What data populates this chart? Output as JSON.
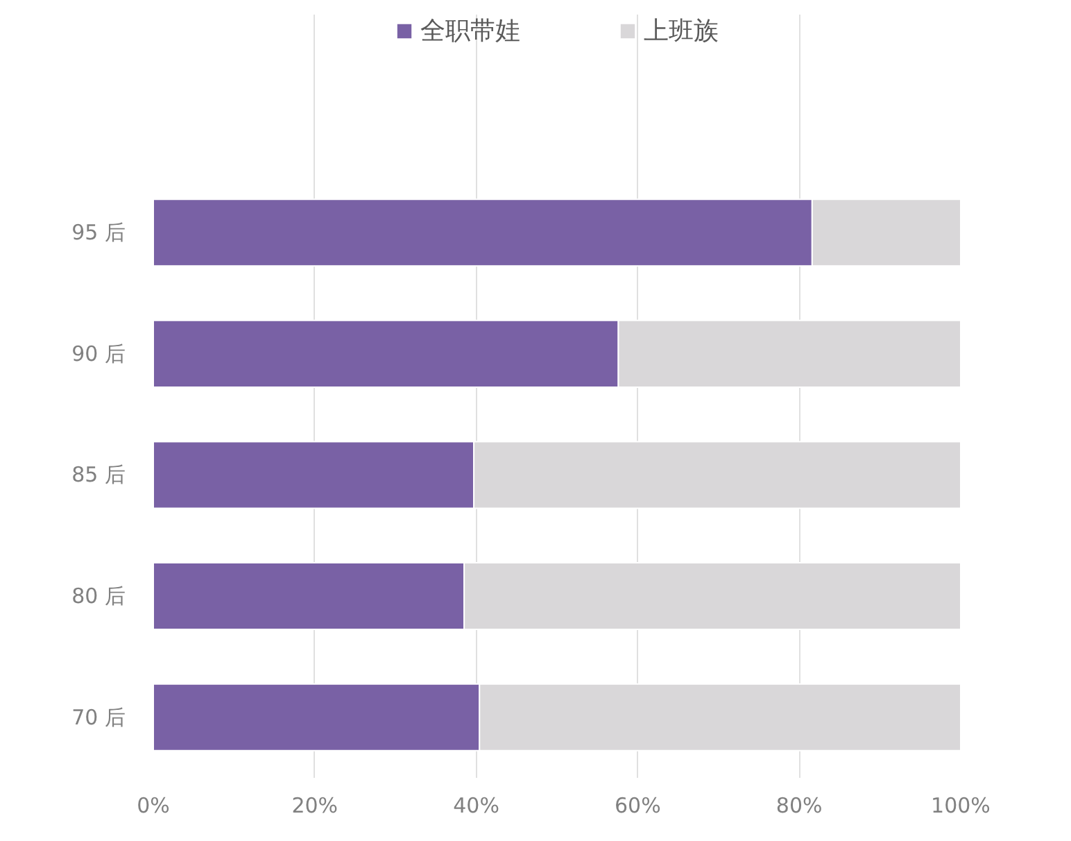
{
  "chart_data": {
    "type": "bar",
    "orientation": "horizontal",
    "stacked": true,
    "categories": [
      "95 后",
      "90 后",
      "85 后",
      "80 后",
      "70 后"
    ],
    "series": [
      {
        "name": "全职带娃",
        "color": "#7961a5",
        "values": [
          81.6,
          57.6,
          39.7,
          38.5,
          40.4
        ]
      },
      {
        "name": "上班族",
        "color": "#d9d7d9",
        "values": [
          18.4,
          42.4,
          60.3,
          61.5,
          59.6
        ]
      }
    ],
    "xlim": [
      0,
      100
    ],
    "xticks": [
      {
        "value": 0,
        "label": "0%"
      },
      {
        "value": 20,
        "label": "20%"
      },
      {
        "value": 40,
        "label": "40%"
      },
      {
        "value": 60,
        "label": "60%"
      },
      {
        "value": 80,
        "label": "80%"
      },
      {
        "value": 100,
        "label": "100%"
      }
    ],
    "grid": "x",
    "legend": "top"
  }
}
